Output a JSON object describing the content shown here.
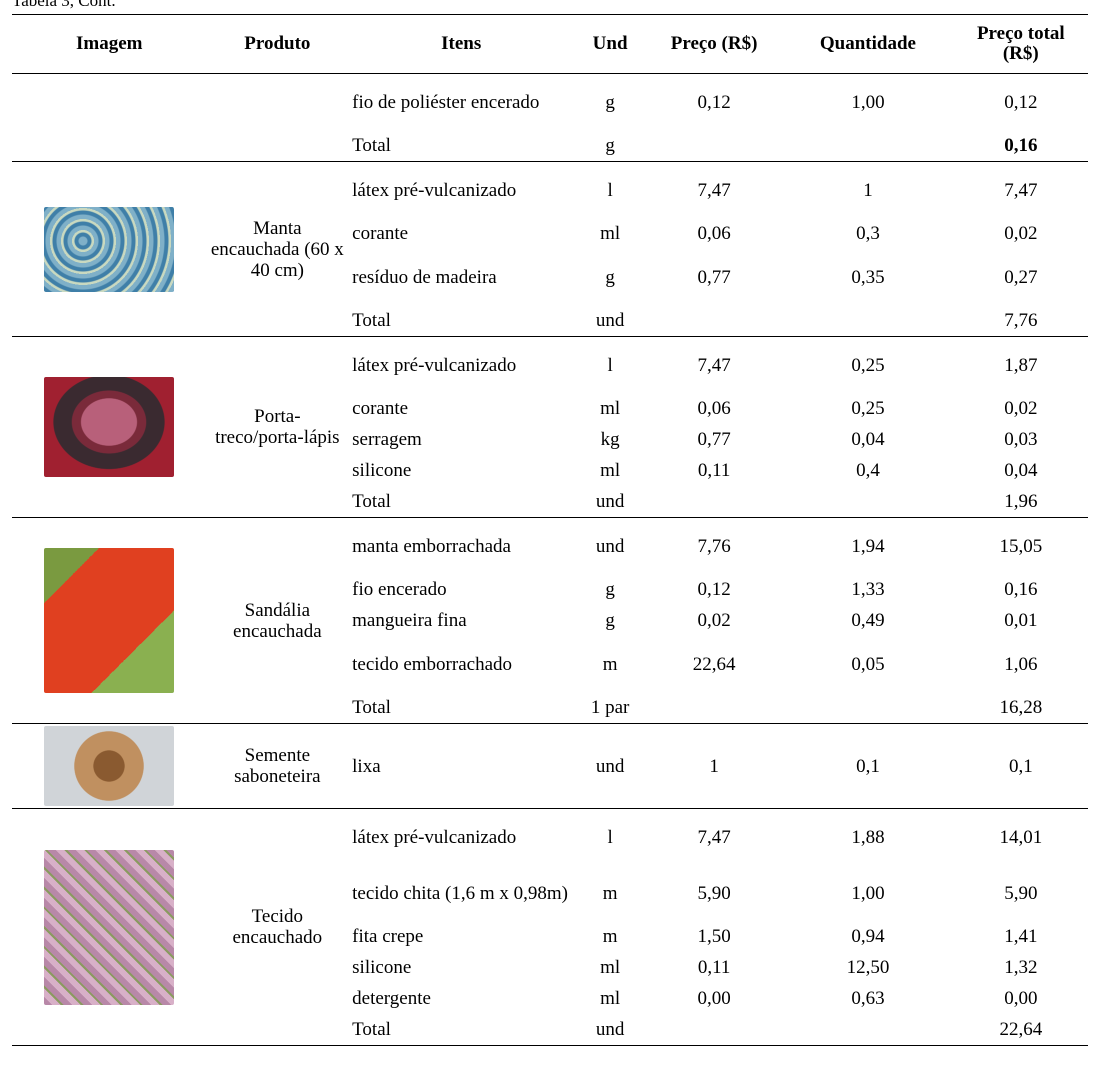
{
  "caption": "Tabela 3, Cont.",
  "table": {
    "header": [
      "Imagem",
      "Produto",
      "Itens",
      "Und",
      "Preço (R$)",
      "Quantidade",
      "Preço total (R$)"
    ],
    "groups": [
      {
        "rows": [
          [
            "fio de poliéster encerado",
            "g",
            "0,12",
            "1,00",
            "0,12"
          ],
          [
            "Total",
            "g",
            null,
            null,
            "0,16"
          ]
        ]
      },
      {
        "product": "Manta encauchada (60 x 40 cm)",
        "rows": [
          [
            "látex pré-vulcanizado",
            "l",
            "7,47",
            "1",
            "7,47"
          ],
          [
            "corante",
            "ml",
            "0,06",
            "0,3",
            "0,02"
          ],
          [
            "resíduo de madeira",
            "g",
            "0,77",
            "0,35",
            "0,27"
          ],
          [
            "Total",
            "und",
            null,
            null,
            "7,76"
          ]
        ]
      },
      {
        "product": "Porta-treco/porta-lápis",
        "rows": [
          [
            "látex pré-vulcanizado",
            "l",
            "7,47",
            "0,25",
            "1,87"
          ],
          [
            "corante",
            "ml",
            "0,06",
            "0,25",
            "0,02"
          ],
          [
            "serragem",
            "kg",
            "0,77",
            "0,04",
            "0,03"
          ],
          [
            "silicone",
            "ml",
            "0,11",
            "0,4",
            "0,04"
          ],
          [
            "Total",
            "und",
            null,
            null,
            "1,96"
          ]
        ]
      },
      {
        "product": "Sandália encauchada",
        "rows": [
          [
            "manta emborrachada",
            "und",
            "7,76",
            "1,94",
            "15,05"
          ],
          [
            "fio encerado",
            "g",
            "0,12",
            "1,33",
            "0,16"
          ],
          [
            "mangueira fina",
            "g",
            "0,02",
            "0,49",
            "0,01"
          ],
          [
            "tecido emborrachado",
            "m",
            "22,64",
            "0,05",
            "1,06"
          ],
          [
            "Total",
            "1 par",
            null,
            null,
            "16,28"
          ]
        ]
      },
      {
        "product": "Semente saboneteira",
        "rows": [
          [
            "lixa",
            "und",
            "1",
            "0,1",
            "0,1"
          ]
        ]
      },
      {
        "product": "Tecido encauchado",
        "rows": [
          [
            "látex pré-vulcanizado",
            "l",
            "7,47",
            "1,88",
            "14,01"
          ],
          [
            "tecido chita (1,6 m x 0,98m)",
            "m",
            "5,90",
            "1,00",
            "5,90"
          ],
          [
            "fita crepe",
            "m",
            "1,50",
            "0,94",
            "1,41"
          ],
          [
            "silicone",
            "ml",
            "0,11",
            "12,50",
            "1,32"
          ],
          [
            "detergente",
            "ml",
            "0,00",
            "0,63",
            "0,00"
          ],
          [
            "Total",
            "und",
            null,
            null,
            "22,64"
          ]
        ]
      }
    ]
  }
}
